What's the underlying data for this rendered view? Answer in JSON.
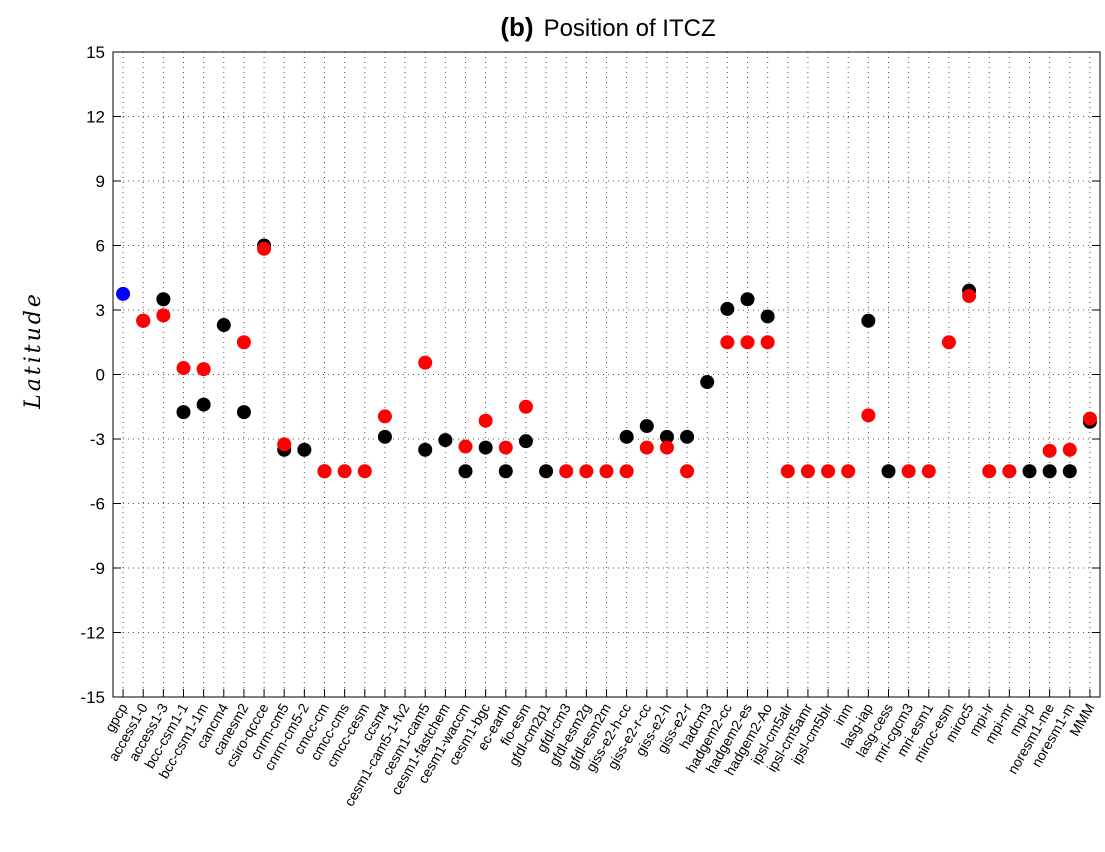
{
  "chart_data": {
    "type": "dot",
    "title_prefix": "(b)",
    "title": "Position of ITCZ",
    "ylabel": "Latitude",
    "categories": [
      "gpcp",
      "access1-0",
      "access1-3",
      "bcc-csm1-1",
      "bcc-csm1-1m",
      "cancm4",
      "canesm2",
      "csiro-qccce",
      "cnrm-cm5",
      "cnrm-cm5-2",
      "cmcc-cm",
      "cmcc-cms",
      "cmcc-cesm",
      "ccsm4",
      "cesm1-cam5-1-fv2",
      "cesm1-cam5",
      "cesm1-fastchem",
      "cesm1-waccm",
      "cesm1-bgc",
      "ec-earth",
      "fio-esm",
      "gfdl-cm2p1",
      "gfdl-cm3",
      "gfdl-esm2g",
      "gfdl-esm2m",
      "giss-e2-h-cc",
      "giss-e2-r-cc",
      "giss-e2-h",
      "giss-e2-r",
      "hadcm3",
      "hadgem2-cc",
      "hadgem2-es",
      "hadgem2-Ao",
      "ipsl-cm5alr",
      "ipsl-cm5amr",
      "ipsl-cm5blr",
      "inm",
      "lasg-iap",
      "lasg-cess",
      "mri-cgcm3",
      "mri-esm1",
      "miroc-esm",
      "miroc5",
      "mpi-lr",
      "mpi-mr",
      "mpi-p",
      "noresm1-me",
      "noresm1-m",
      "MMM"
    ],
    "series": [
      {
        "color": "#0000ff",
        "values": [
          3.75,
          null,
          null,
          null,
          null,
          null,
          null,
          null,
          null,
          null,
          null,
          null,
          null,
          null,
          null,
          null,
          null,
          null,
          null,
          null,
          null,
          null,
          null,
          null,
          null,
          null,
          null,
          null,
          null,
          null,
          null,
          null,
          null,
          null,
          null,
          null,
          null,
          null,
          null,
          null,
          null,
          null,
          null,
          null,
          null,
          null,
          null,
          null,
          null
        ]
      },
      {
        "color": "#000000",
        "values": [
          null,
          2.5,
          3.5,
          -1.75,
          -1.4,
          2.3,
          -1.75,
          6.0,
          -3.5,
          -3.5,
          -4.5,
          null,
          null,
          -2.9,
          null,
          -3.5,
          -3.05,
          -4.5,
          -3.4,
          -4.5,
          -3.1,
          -4.5,
          null,
          null,
          null,
          -2.9,
          -2.4,
          -2.9,
          -2.9,
          -0.35,
          3.05,
          3.5,
          2.7,
          null,
          null,
          null,
          null,
          2.5,
          -4.5,
          null,
          null,
          null,
          3.9,
          null,
          null,
          -4.5,
          -4.5,
          -4.5,
          -2.2
        ]
      },
      {
        "color": "#ff0000",
        "values": [
          null,
          2.5,
          2.75,
          0.3,
          0.25,
          null,
          1.5,
          5.85,
          -3.25,
          null,
          -4.5,
          -4.5,
          -4.5,
          -1.95,
          null,
          0.55,
          null,
          -3.35,
          -2.15,
          -3.4,
          -1.5,
          null,
          -4.5,
          -4.5,
          -4.5,
          -4.5,
          -3.4,
          -3.4,
          -4.5,
          null,
          1.5,
          1.5,
          1.5,
          -4.5,
          -4.5,
          -4.5,
          -4.5,
          -1.9,
          null,
          -4.5,
          -4.5,
          1.5,
          3.65,
          -4.5,
          -4.5,
          null,
          -3.55,
          -3.5,
          -2.05
        ]
      }
    ],
    "ylim": [
      -15,
      15
    ],
    "yticks": [
      -15,
      -12,
      -9,
      -6,
      -3,
      0,
      3,
      6,
      9,
      12,
      15
    ],
    "grid": true
  }
}
